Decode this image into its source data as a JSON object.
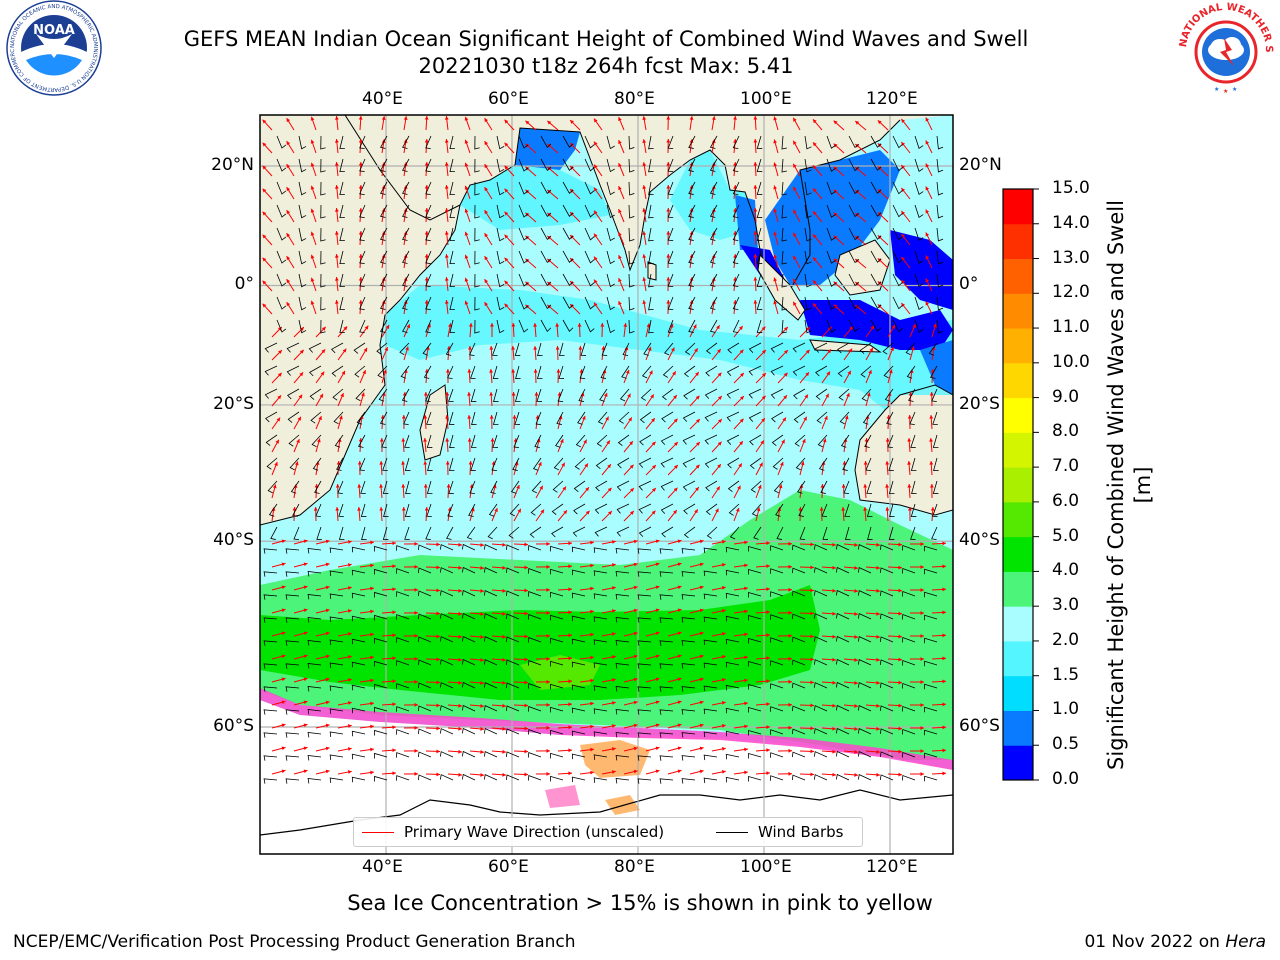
{
  "title_line1": "GEFS MEAN Indian Ocean Significant Height of Combined Wind Waves and Swell",
  "title_line2": "20221030 t18z 264h fcst   Max: 5.41",
  "logos": {
    "noaa": {
      "text": "NOAA",
      "ring_text": "NATIONAL OCEANIC AND ATMOSPHERIC ADMINISTRATION  U.S. DEPARTMENT OF COMMERCE",
      "colors": {
        "dark": "#1c3f94",
        "light": "#1e90ff"
      }
    },
    "nws": {
      "ring_text": "NATIONAL WEATHER SERVICE",
      "colors": {
        "ring": "#e8252b",
        "blue": "#1e6fd9"
      }
    }
  },
  "map": {
    "region": "Indian Ocean",
    "lon_range": [
      20,
      130
    ],
    "lat_range": [
      -85,
      28
    ],
    "lon_ticks": [
      "40°E",
      "60°E",
      "80°E",
      "100°E",
      "120°E"
    ],
    "lat_ticks": [
      "20°N",
      "0°",
      "20°S",
      "40°S",
      "60°S"
    ],
    "colors": {
      "land": "#efefdc",
      "ice": "#ffffff",
      "grid": "#b0b0b0"
    }
  },
  "colorbar": {
    "title": "Significant Height of Combined Wind Waves and Swell [m]",
    "levels": [
      "0.0",
      "0.5",
      "1.0",
      "1.5",
      "2.0",
      "3.0",
      "4.0",
      "5.0",
      "6.0",
      "7.0",
      "8.0",
      "9.0",
      "10.0",
      "11.0",
      "12.0",
      "13.0",
      "14.0",
      "15.0"
    ],
    "colors": [
      "#0000ff",
      "#0a7bff",
      "#00ddff",
      "#55f5ff",
      "#aafdff",
      "#4cf57a",
      "#00e400",
      "#55e800",
      "#aaee00",
      "#d4f500",
      "#ffff00",
      "#ffd700",
      "#ffb000",
      "#ff8c00",
      "#ff6000",
      "#ff3000",
      "#ff0000"
    ]
  },
  "legend": {
    "items": [
      {
        "label": "Primary Wave Direction (unscaled)",
        "color": "#ff0000"
      },
      {
        "label": "Wind Barbs",
        "color": "#000000"
      }
    ]
  },
  "caption": "Sea Ice Concentration > 15% is shown in pink to yellow",
  "footer": {
    "left": "NCEP/EMC/Verification Post Processing Product Generation Branch",
    "right_date": "01 Nov 2022 on",
    "right_host": "Hera"
  }
}
